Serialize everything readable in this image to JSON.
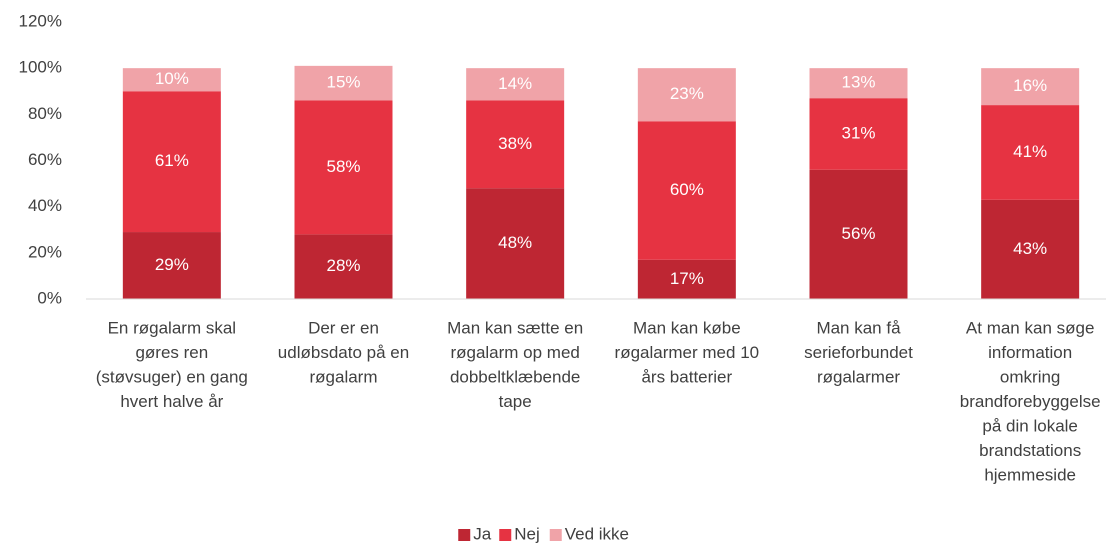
{
  "chart_data": {
    "type": "stacked_bar",
    "categories": [
      [
        "En røgalarm skal",
        "gøres ren",
        "(støvsuger) en gang",
        "hvert halve år"
      ],
      [
        "Der er en",
        "udløbsdato på en",
        "røgalarm"
      ],
      [
        "Man kan sætte en",
        "røgalarm op med",
        "dobbeltklæbende",
        "tape"
      ],
      [
        "Man kan købe",
        "røgalarmer med 10",
        "års batterier"
      ],
      [
        "Man kan få",
        "serieforbundet",
        "røgalarmer"
      ],
      [
        "At man kan søge",
        "information",
        "omkring",
        "brandforebyggelse",
        "på din lokale",
        "brandstations",
        "hjemmeside"
      ]
    ],
    "series": [
      {
        "name": "Ja",
        "color": "#be2633",
        "values": [
          29,
          28,
          48,
          17,
          56,
          43
        ],
        "value_labels": [
          "29%",
          "28%",
          "48%",
          "17%",
          "56%",
          "43%"
        ]
      },
      {
        "name": "Nej",
        "color": "#e63342",
        "values": [
          61,
          58,
          38,
          60,
          31,
          41
        ],
        "value_labels": [
          "61%",
          "58%",
          "38%",
          "60%",
          "31%",
          "41%"
        ]
      },
      {
        "name": "Ved ikke",
        "color": "#f0a3a8",
        "values": [
          10,
          15,
          14,
          23,
          13,
          16
        ],
        "value_labels": [
          "10%",
          "15%",
          "14%",
          "23%",
          "13%",
          "16%"
        ]
      }
    ],
    "ylim": [
      0,
      120
    ],
    "yticks": [
      {
        "value": 0,
        "label": "0%"
      },
      {
        "value": 20,
        "label": "20%"
      },
      {
        "value": 40,
        "label": "40%"
      },
      {
        "value": 60,
        "label": "60%"
      },
      {
        "value": 80,
        "label": "80%"
      },
      {
        "value": 100,
        "label": "100%"
      },
      {
        "value": 120,
        "label": "120%"
      }
    ],
    "grid": false,
    "legend": "bottom"
  }
}
